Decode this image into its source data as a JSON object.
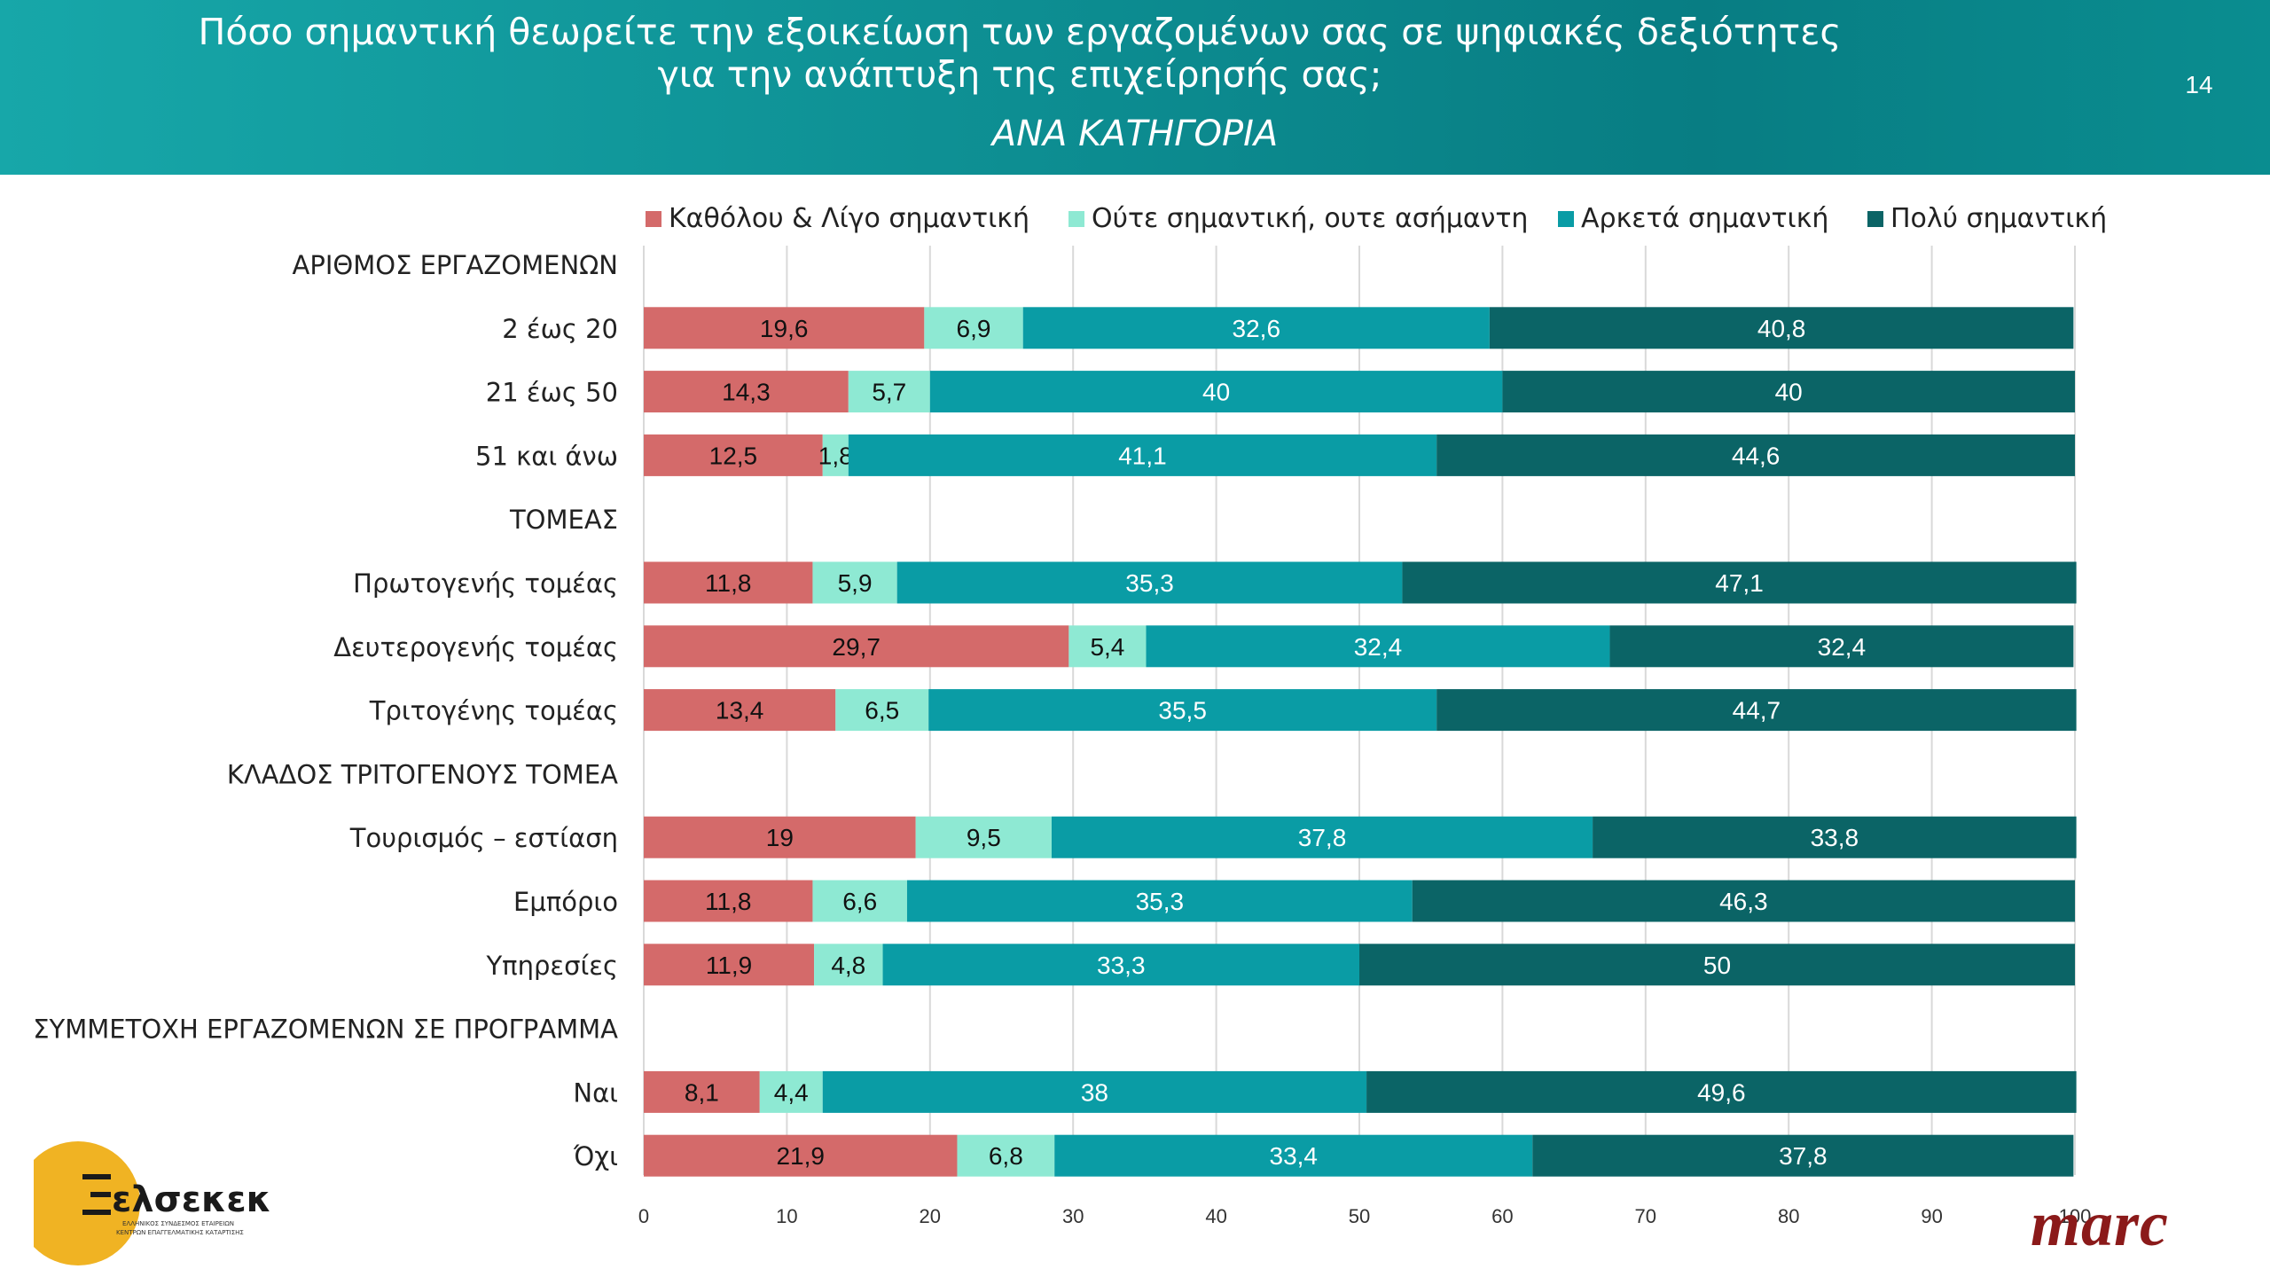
{
  "header": {
    "title": "Πόσο σημαντική θεωρείτε την εξοικείωση των εργαζομένων σας σε ψηφιακές δεξιότητες για την ανάπτυξη της επιχείρησής σας;",
    "subtitle": "ΑΝΑ ΚΑΤΗΓΟΡΙΑ",
    "page_number": "14"
  },
  "logos": {
    "left": "ελσεκεκ",
    "left_tagline_1": "ΕΛΛΗΝΙΚΟΣ ΣΥΝΔΕΣΜΟΣ ΕΤΑΙΡΕΙΩΝ",
    "left_tagline_2": "ΚΕΝΤΡΩΝ ΕΠΑΓΓΕΛΜΑΤΙΚΗΣ ΚΑΤΑΡΤΙΣΗΣ",
    "right": "marc"
  },
  "chart_data": {
    "type": "bar",
    "orientation": "horizontal",
    "stacked": true,
    "legend_position": "top",
    "grid": true,
    "xlim": [
      0,
      100
    ],
    "x_ticks": [
      0,
      10,
      20,
      30,
      40,
      50,
      60,
      70,
      80,
      90,
      100
    ],
    "series": [
      {
        "name": "Καθόλου & Λίγο σημαντική",
        "color": "#d46a6a"
      },
      {
        "name": "Ούτε σημαντική, ουτε ασήμαντη",
        "color": "#8ee9d3"
      },
      {
        "name": "Αρκετά σημαντική",
        "color": "#0a9ca5"
      },
      {
        "name": "Πολύ σημαντική",
        "color": "#0b6466"
      }
    ],
    "rows": [
      {
        "label": "ΑΡΙΘΜΟΣ ΕΡΓΑΖΟΜΕΝΩΝ",
        "values": null
      },
      {
        "label": "2 έως 20",
        "values": [
          19.6,
          6.9,
          32.6,
          40.8
        ],
        "labels": [
          "19,6",
          "6,9",
          "32,6",
          "40,8"
        ]
      },
      {
        "label": "21 έως 50",
        "values": [
          14.3,
          5.7,
          40,
          40
        ],
        "labels": [
          "14,3",
          "5,7",
          "40",
          "40"
        ]
      },
      {
        "label": "51 και άνω",
        "values": [
          12.5,
          1.8,
          41.1,
          44.6
        ],
        "labels": [
          "12,5",
          "1,8",
          "41,1",
          "44,6"
        ]
      },
      {
        "label": "ΤΟΜΕΑΣ",
        "values": null
      },
      {
        "label": "Πρωτογενής τομέας",
        "values": [
          11.8,
          5.9,
          35.3,
          47.1
        ],
        "labels": [
          "11,8",
          "5,9",
          "35,3",
          "47,1"
        ]
      },
      {
        "label": "Δευτερογενής τομέας",
        "values": [
          29.7,
          5.4,
          32.4,
          32.4
        ],
        "labels": [
          "29,7",
          "5,4",
          "32,4",
          "32,4"
        ]
      },
      {
        "label": "Τριτογένης τομέας",
        "values": [
          13.4,
          6.5,
          35.5,
          44.7
        ],
        "labels": [
          "13,4",
          "6,5",
          "35,5",
          "44,7"
        ]
      },
      {
        "label": "ΚΛΑΔΟΣ ΤΡΙΤΟΓΕΝΟΥΣ ΤΟΜΕΑ",
        "values": null
      },
      {
        "label": "Τουρισμός – εστίαση",
        "values": [
          19,
          9.5,
          37.8,
          33.8
        ],
        "labels": [
          "19",
          "9,5",
          "37,8",
          "33,8"
        ]
      },
      {
        "label": "Εμπόριο",
        "values": [
          11.8,
          6.6,
          35.3,
          46.3
        ],
        "labels": [
          "11,8",
          "6,6",
          "35,3",
          "46,3"
        ]
      },
      {
        "label": "Υπηρεσίες",
        "values": [
          11.9,
          4.8,
          33.3,
          50
        ],
        "labels": [
          "11,9",
          "4,8",
          "33,3",
          "50"
        ]
      },
      {
        "label": "ΣΥΜΜΕΤΟΧΗ ΕΡΓΑΖΟΜΕΝΩΝ ΣΕ ΠΡΟΓΡΑΜΜΑ",
        "values": null
      },
      {
        "label": "Ναι",
        "values": [
          8.1,
          4.4,
          38,
          49.6
        ],
        "labels": [
          "8,1",
          "4,4",
          "38",
          "49,6"
        ]
      },
      {
        "label": "Όχι",
        "values": [
          21.9,
          6.8,
          33.4,
          37.8
        ],
        "labels": [
          "21,9",
          "6,8",
          "33,4",
          "37,8"
        ]
      }
    ]
  }
}
